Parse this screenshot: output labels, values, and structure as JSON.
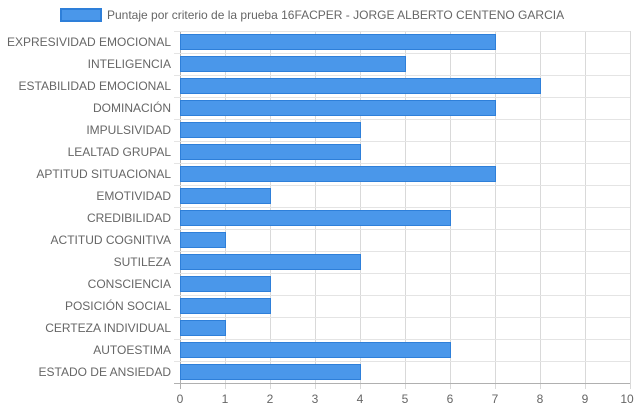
{
  "chart_data": {
    "type": "bar",
    "orientation": "horizontal",
    "categories": [
      "EXPRESIVIDAD EMOCIONAL",
      "INTELIGENCIA",
      "ESTABILIDAD EMOCIONAL",
      "DOMINACIÓN",
      "IMPULSIVIDAD",
      "LEALTAD GRUPAL",
      "APTITUD SITUACIONAL",
      "EMOTIVIDAD",
      "CREDIBILIDAD",
      "ACTITUD COGNITIVA",
      "SUTILEZA",
      "CONSCIENCIA",
      "POSICIÓN SOCIAL",
      "CERTEZA INDIVIDUAL",
      "AUTOESTIMA",
      "ESTADO DE ANSIEDAD"
    ],
    "series": [
      {
        "name": "Puntaje por criterio de la prueba 16FACPER - JORGE ALBERTO CENTENO GARCIA",
        "values": [
          7,
          5,
          8,
          7,
          4,
          4,
          7,
          2,
          6,
          1,
          4,
          2,
          2,
          1,
          6,
          4
        ],
        "color": "#4a97ea",
        "border_color": "#2e7fd9"
      }
    ],
    "xlim": [
      0,
      10
    ],
    "xticks": [
      "0",
      "1",
      "2",
      "3",
      "4",
      "5",
      "6",
      "7",
      "8",
      "9",
      "10"
    ],
    "grid": true,
    "legend_position": "top"
  }
}
